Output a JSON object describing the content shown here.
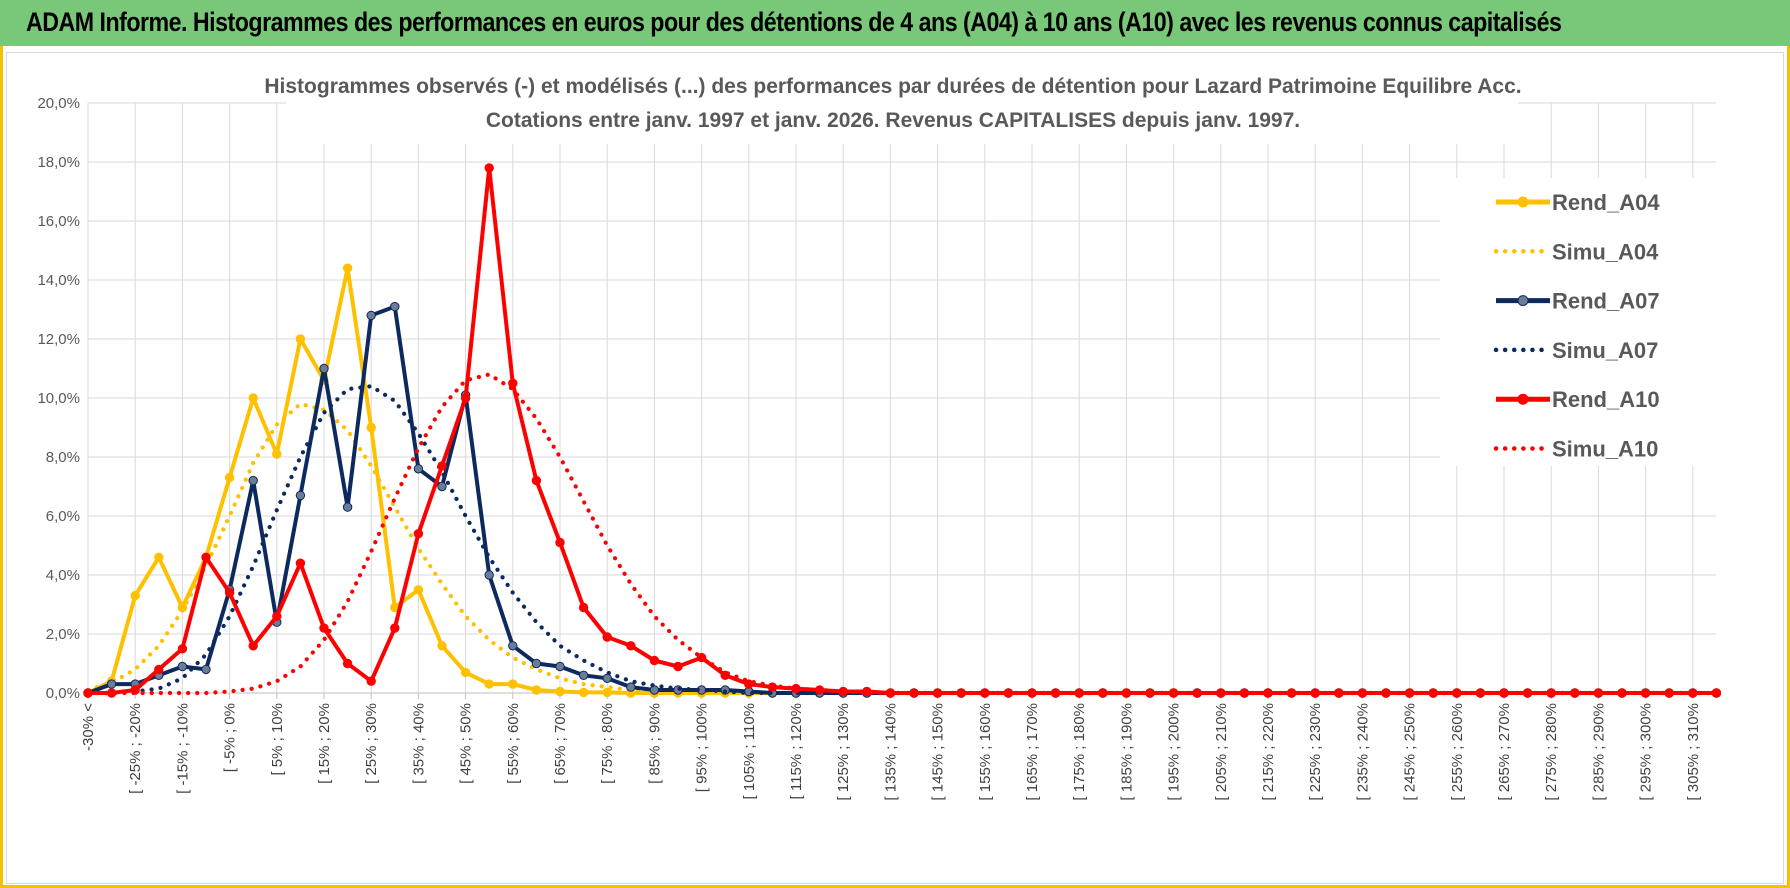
{
  "header": {
    "title": "ADAM Informe. Histogrammes des performances en euros pour des détentions de 4 ans (A04) à 10 ans (A10) avec les revenus connus capitalisés"
  },
  "colors": {
    "banner": "#79c879",
    "border": "#f2c200",
    "a04": "#ffc000",
    "a07": "#0d2a5e",
    "a10": "#ff0000"
  },
  "chart_data": {
    "type": "line",
    "title": "Histogrammes observés (-) et modélisés (...) des performances par durées de détention pour Lazard Patrimoine Equilibre Acc.",
    "subtitle": "Cotations entre janv. 1997 et janv. 2026. Revenus CAPITALISES depuis janv. 1997.",
    "xlabel": "",
    "ylabel": "",
    "ylim": [
      0,
      20
    ],
    "y_ticks": [
      "0,0%",
      "2,0%",
      "4,0%",
      "6,0%",
      "8,0%",
      "10,0%",
      "12,0%",
      "14,0%",
      "16,0%",
      "18,0%",
      "20,0%"
    ],
    "grid": true,
    "legend_position": "right",
    "categories": [
      "-30% <",
      "[ -30% ; -25%",
      "[ -25% ; -20%",
      "[ -20% ; -15%",
      "[ -15% ; -10%",
      "[ -10% ; -5%",
      "[ -5% ; 0%",
      "[ 0% ; 5%",
      "[ 5% ; 10%",
      "[ 10% ; 15%",
      "[ 15% ; 20%",
      "[ 20% ; 25%",
      "[ 25% ; 30%",
      "[ 30% ; 35%",
      "[ 35% ; 40%",
      "[ 40% ; 45%",
      "[ 45% ; 50%",
      "[ 50% ; 55%",
      "[ 55% ; 60%",
      "[ 60% ; 65%",
      "[ 65% ; 70%",
      "[ 70% ; 75%",
      "[ 75% ; 80%",
      "[ 80% ; 85%",
      "[ 85% ; 90%",
      "[ 90% ; 95%",
      "[ 95% ; 100%",
      "[ 100% ; 105%",
      "[ 105% ; 110%",
      "[ 110% ; 115%",
      "[ 115% ; 120%",
      "[ 120% ; 125%",
      "[ 125% ; 130%",
      "[ 130% ; 135%",
      "[ 135% ; 140%",
      "[ 140% ; 145%",
      "[ 145% ; 150%",
      "[ 150% ; 155%",
      "[ 155% ; 160%",
      "[ 160% ; 165%",
      "[ 165% ; 170%",
      "[ 170% ; 175%",
      "[ 175% ; 180%",
      "[ 180% ; 185%",
      "[ 185% ; 190%",
      "[ 190% ; 195%",
      "[ 195% ; 200%",
      "[ 200% ; 205%",
      "[ 205% ; 210%",
      "[ 210% ; 215%",
      "[ 215% ; 220%",
      "[ 220% ; 225%",
      "[ 225% ; 230%",
      "[ 230% ; 235%",
      "[ 235% ; 240%",
      "[ 240% ; 245%",
      "[ 245% ; 250%",
      "[ 250% ; 255%",
      "[ 255% ; 260%",
      "[ 260% ; 265%",
      "[ 265% ; 270%",
      "[ 270% ; 275%",
      "[ 275% ; 280%",
      "[ 280% ; 285%",
      "[ 285% ; 290%",
      "[ 290% ; 295%",
      "[ 295% ; 300%",
      "[ 300% ; 305%",
      "[ 305% ; 310%",
      "[ 310% ; 315%"
    ],
    "visible_category_labels": [
      "-30% <",
      "[ -25% ; -20%",
      "[ -15% ; -10%",
      "[ -5% ; 0%",
      "[ 5% ; 10%",
      "[ 15% ; 20%",
      "[ 25% ; 30%",
      "[ 35% ; 40%",
      "[ 45% ; 50%",
      "[ 55% ; 60%",
      "[ 65% ; 70%",
      "[ 75% ; 80%",
      "[ 85% ; 90%",
      "[ 95% ; 100%",
      "[ 105% ; 110%",
      "[ 115% ; 120%",
      "[ 125% ; 130%",
      "[ 135% ; 140%",
      "[ 145% ; 150%",
      "[ 155% ; 160%",
      "[ 165% ; 170%",
      "[ 175% ; 180%",
      "[ 185% ; 190%",
      "[ 195% ; 200%",
      "[ 205% ; 210%",
      "[ 215% ; 220%",
      "[ 225% ; 230%",
      "[ 235% ; 240%",
      "[ 245% ; 250%",
      "[ 255% ; 260%",
      "[ 265% ; 270%",
      "[ 275% ; 280%",
      "[ 285% ; 290%",
      "[ 295% ; 300%",
      "[ 305% ; 310%"
    ],
    "series": [
      {
        "name": "Rend_A04",
        "style": "solid",
        "color": "#ffc000",
        "values": [
          0,
          0.4,
          3.3,
          4.6,
          2.9,
          4.6,
          7.3,
          10.0,
          8.1,
          12.0,
          10.6,
          14.4,
          9.0,
          2.9,
          3.5,
          1.6,
          0.7,
          0.3,
          0.3,
          0.1,
          0.05,
          0.02,
          0.02,
          0,
          0,
          0,
          0,
          0,
          0,
          0,
          0,
          0,
          0,
          0,
          0,
          0,
          0,
          0,
          0,
          0,
          0,
          0,
          0,
          0,
          0,
          0,
          0,
          0,
          0,
          0,
          0,
          0,
          0,
          0,
          0,
          0,
          0,
          0,
          0,
          0,
          0,
          0,
          0,
          0,
          0,
          0,
          0,
          0,
          0,
          0
        ]
      },
      {
        "name": "Simu_A04",
        "style": "dotted",
        "color": "#ffc000",
        "values": [
          0.1,
          0.35,
          0.8,
          1.6,
          2.8,
          4.3,
          6.0,
          7.8,
          9.1,
          9.8,
          9.6,
          8.9,
          7.7,
          6.3,
          4.9,
          3.7,
          2.6,
          1.8,
          1.2,
          0.8,
          0.5,
          0.3,
          0.2,
          0.1,
          0.05,
          0.03,
          0,
          0,
          0,
          0,
          0,
          0,
          0,
          0,
          0,
          0,
          0,
          0,
          0,
          0,
          0,
          0,
          0,
          0,
          0,
          0,
          0,
          0,
          0,
          0,
          0,
          0,
          0,
          0,
          0,
          0,
          0,
          0,
          0,
          0,
          0,
          0,
          0,
          0,
          0,
          0,
          0,
          0,
          0,
          0
        ]
      },
      {
        "name": "Rend_A07",
        "style": "solid",
        "color": "#0d2a5e",
        "values": [
          0,
          0.3,
          0.3,
          0.6,
          0.9,
          0.8,
          3.5,
          7.2,
          2.4,
          6.7,
          11.0,
          6.3,
          12.8,
          13.1,
          7.6,
          7.0,
          10.1,
          4.0,
          1.6,
          1.0,
          0.9,
          0.6,
          0.5,
          0.2,
          0.1,
          0.1,
          0.1,
          0.1,
          0.05,
          0,
          0,
          0,
          0,
          0,
          0,
          0,
          0,
          0,
          0,
          0,
          0,
          0,
          0,
          0,
          0,
          0,
          0,
          0,
          0,
          0,
          0,
          0,
          0,
          0,
          0,
          0,
          0,
          0,
          0,
          0,
          0,
          0,
          0,
          0,
          0,
          0,
          0,
          0,
          0,
          0
        ]
      },
      {
        "name": "Simu_A07",
        "style": "dotted",
        "color": "#0d2a5e",
        "values": [
          0,
          0,
          0.05,
          0.15,
          0.5,
          1.3,
          2.6,
          4.3,
          6.2,
          8.0,
          9.5,
          10.3,
          10.4,
          9.9,
          8.8,
          7.5,
          6.0,
          4.6,
          3.4,
          2.4,
          1.6,
          1.1,
          0.7,
          0.4,
          0.25,
          0.15,
          0.1,
          0.05,
          0,
          0,
          0,
          0,
          0,
          0,
          0,
          0,
          0,
          0,
          0,
          0,
          0,
          0,
          0,
          0,
          0,
          0,
          0,
          0,
          0,
          0,
          0,
          0,
          0,
          0,
          0,
          0,
          0,
          0,
          0,
          0,
          0,
          0,
          0,
          0,
          0,
          0,
          0,
          0,
          0,
          0
        ]
      },
      {
        "name": "Rend_A10",
        "style": "solid",
        "color": "#ff0000",
        "values": [
          0,
          0,
          0.1,
          0.8,
          1.5,
          4.6,
          3.4,
          1.6,
          2.6,
          4.4,
          2.2,
          1.0,
          0.4,
          2.2,
          5.4,
          7.7,
          10.0,
          17.8,
          10.5,
          7.2,
          5.1,
          2.9,
          1.9,
          1.6,
          1.1,
          0.9,
          1.2,
          0.6,
          0.3,
          0.2,
          0.15,
          0.1,
          0.05,
          0.05,
          0,
          0,
          0,
          0,
          0,
          0,
          0,
          0,
          0,
          0,
          0,
          0,
          0,
          0,
          0,
          0,
          0,
          0,
          0,
          0,
          0,
          0,
          0,
          0,
          0,
          0,
          0,
          0,
          0,
          0,
          0,
          0,
          0,
          0,
          0,
          0
        ]
      },
      {
        "name": "Simu_A10",
        "style": "dotted",
        "color": "#ff0000",
        "values": [
          0,
          0,
          0,
          0,
          0,
          0,
          0.05,
          0.15,
          0.4,
          0.9,
          1.8,
          3.1,
          4.8,
          6.6,
          8.3,
          9.7,
          10.6,
          10.8,
          10.3,
          9.3,
          8.0,
          6.5,
          5.0,
          3.7,
          2.6,
          1.8,
          1.2,
          0.7,
          0.4,
          0.25,
          0.15,
          0.1,
          0.05,
          0,
          0,
          0,
          0,
          0,
          0,
          0,
          0,
          0,
          0,
          0,
          0,
          0,
          0,
          0,
          0,
          0,
          0,
          0,
          0,
          0,
          0,
          0,
          0,
          0,
          0,
          0,
          0,
          0,
          0,
          0,
          0,
          0,
          0,
          0,
          0,
          0
        ]
      }
    ]
  }
}
